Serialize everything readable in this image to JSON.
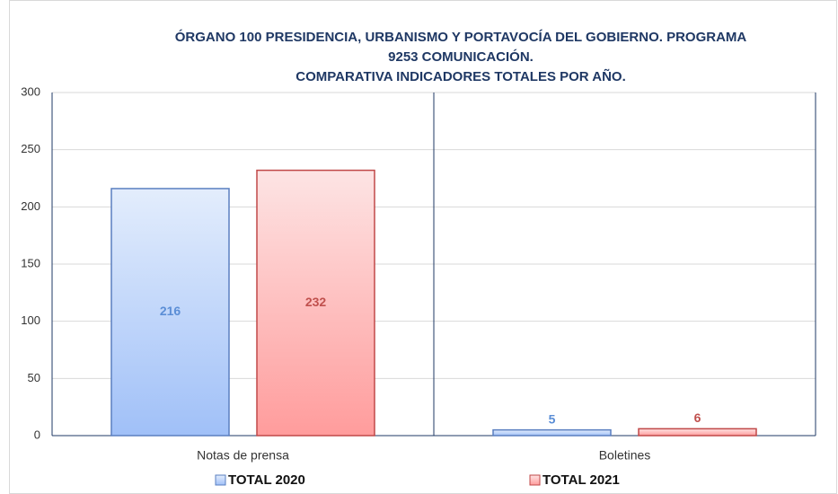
{
  "chart_data": {
    "type": "bar",
    "title": [
      "ÓRGANO 100 PRESIDENCIA, URBANISMO Y PORTAVOCÍA DEL GOBIERNO. PROGRAMA",
      "9253 COMUNICACIÓN.",
      "COMPARATIVA INDICADORES TOTALES POR AÑO."
    ],
    "categories": [
      "Notas de prensa",
      "Boletines"
    ],
    "series": [
      {
        "name": "TOTAL 2020",
        "color": "#a0c0f8",
        "values": [
          216,
          5
        ]
      },
      {
        "name": "TOTAL 2021",
        "color": "#ff9c9c",
        "values": [
          232,
          6
        ]
      }
    ],
    "ylim": [
      0,
      300
    ],
    "yticks": [
      0,
      50,
      100,
      150,
      200,
      250,
      300
    ],
    "grid": true
  }
}
